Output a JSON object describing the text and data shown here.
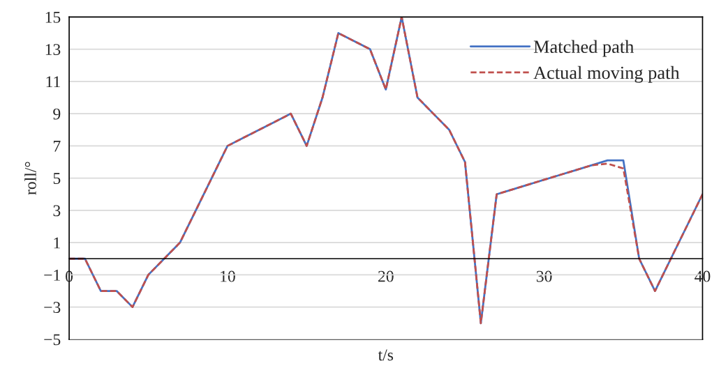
{
  "chart_data": {
    "type": "line",
    "xlabel": "t/s",
    "ylabel": "roll/°",
    "x": [
      0,
      1,
      2,
      3,
      4,
      5,
      6,
      7,
      8,
      9,
      10,
      11,
      12,
      13,
      14,
      15,
      16,
      17,
      18,
      19,
      20,
      21,
      22,
      23,
      24,
      25,
      26,
      27,
      28,
      29,
      30,
      31,
      32,
      33,
      34,
      35,
      36,
      37,
      38,
      39,
      40
    ],
    "series": [
      {
        "name": "Matched path",
        "color": "#4472c4",
        "line_style": "solid",
        "values": [
          0,
          0,
          -2,
          -2,
          -3,
          -1,
          0,
          1,
          3,
          5,
          7,
          7.5,
          8,
          8.5,
          9,
          7,
          10,
          14,
          13.5,
          13,
          10.5,
          15,
          10,
          9,
          8,
          6,
          -4,
          4,
          4.3,
          4.6,
          4.9,
          5.2,
          5.5,
          5.8,
          6.1,
          6.1,
          0,
          -2,
          0,
          2,
          4
        ]
      },
      {
        "name": "Actual moving path",
        "color": "#c0504d",
        "line_style": "dashed",
        "values": [
          0,
          0,
          -2,
          -2,
          -3,
          -1,
          0,
          1,
          3,
          5,
          7,
          7.5,
          8,
          8.5,
          9,
          7,
          10,
          14,
          13.5,
          13,
          10.5,
          15,
          10,
          9,
          8,
          6,
          -4,
          4,
          4.3,
          4.6,
          4.9,
          5.2,
          5.5,
          5.8,
          5.9,
          5.6,
          0,
          -2,
          0,
          2,
          4
        ]
      }
    ],
    "xlim": [
      0,
      40
    ],
    "xticks": [
      0,
      10,
      20,
      30,
      40
    ],
    "ylim": [
      -5,
      15
    ],
    "yticks": [
      -5,
      -3,
      -1,
      1,
      3,
      5,
      7,
      9,
      11,
      13,
      15
    ],
    "grid": "y",
    "legend": "top right",
    "marker": "none"
  }
}
